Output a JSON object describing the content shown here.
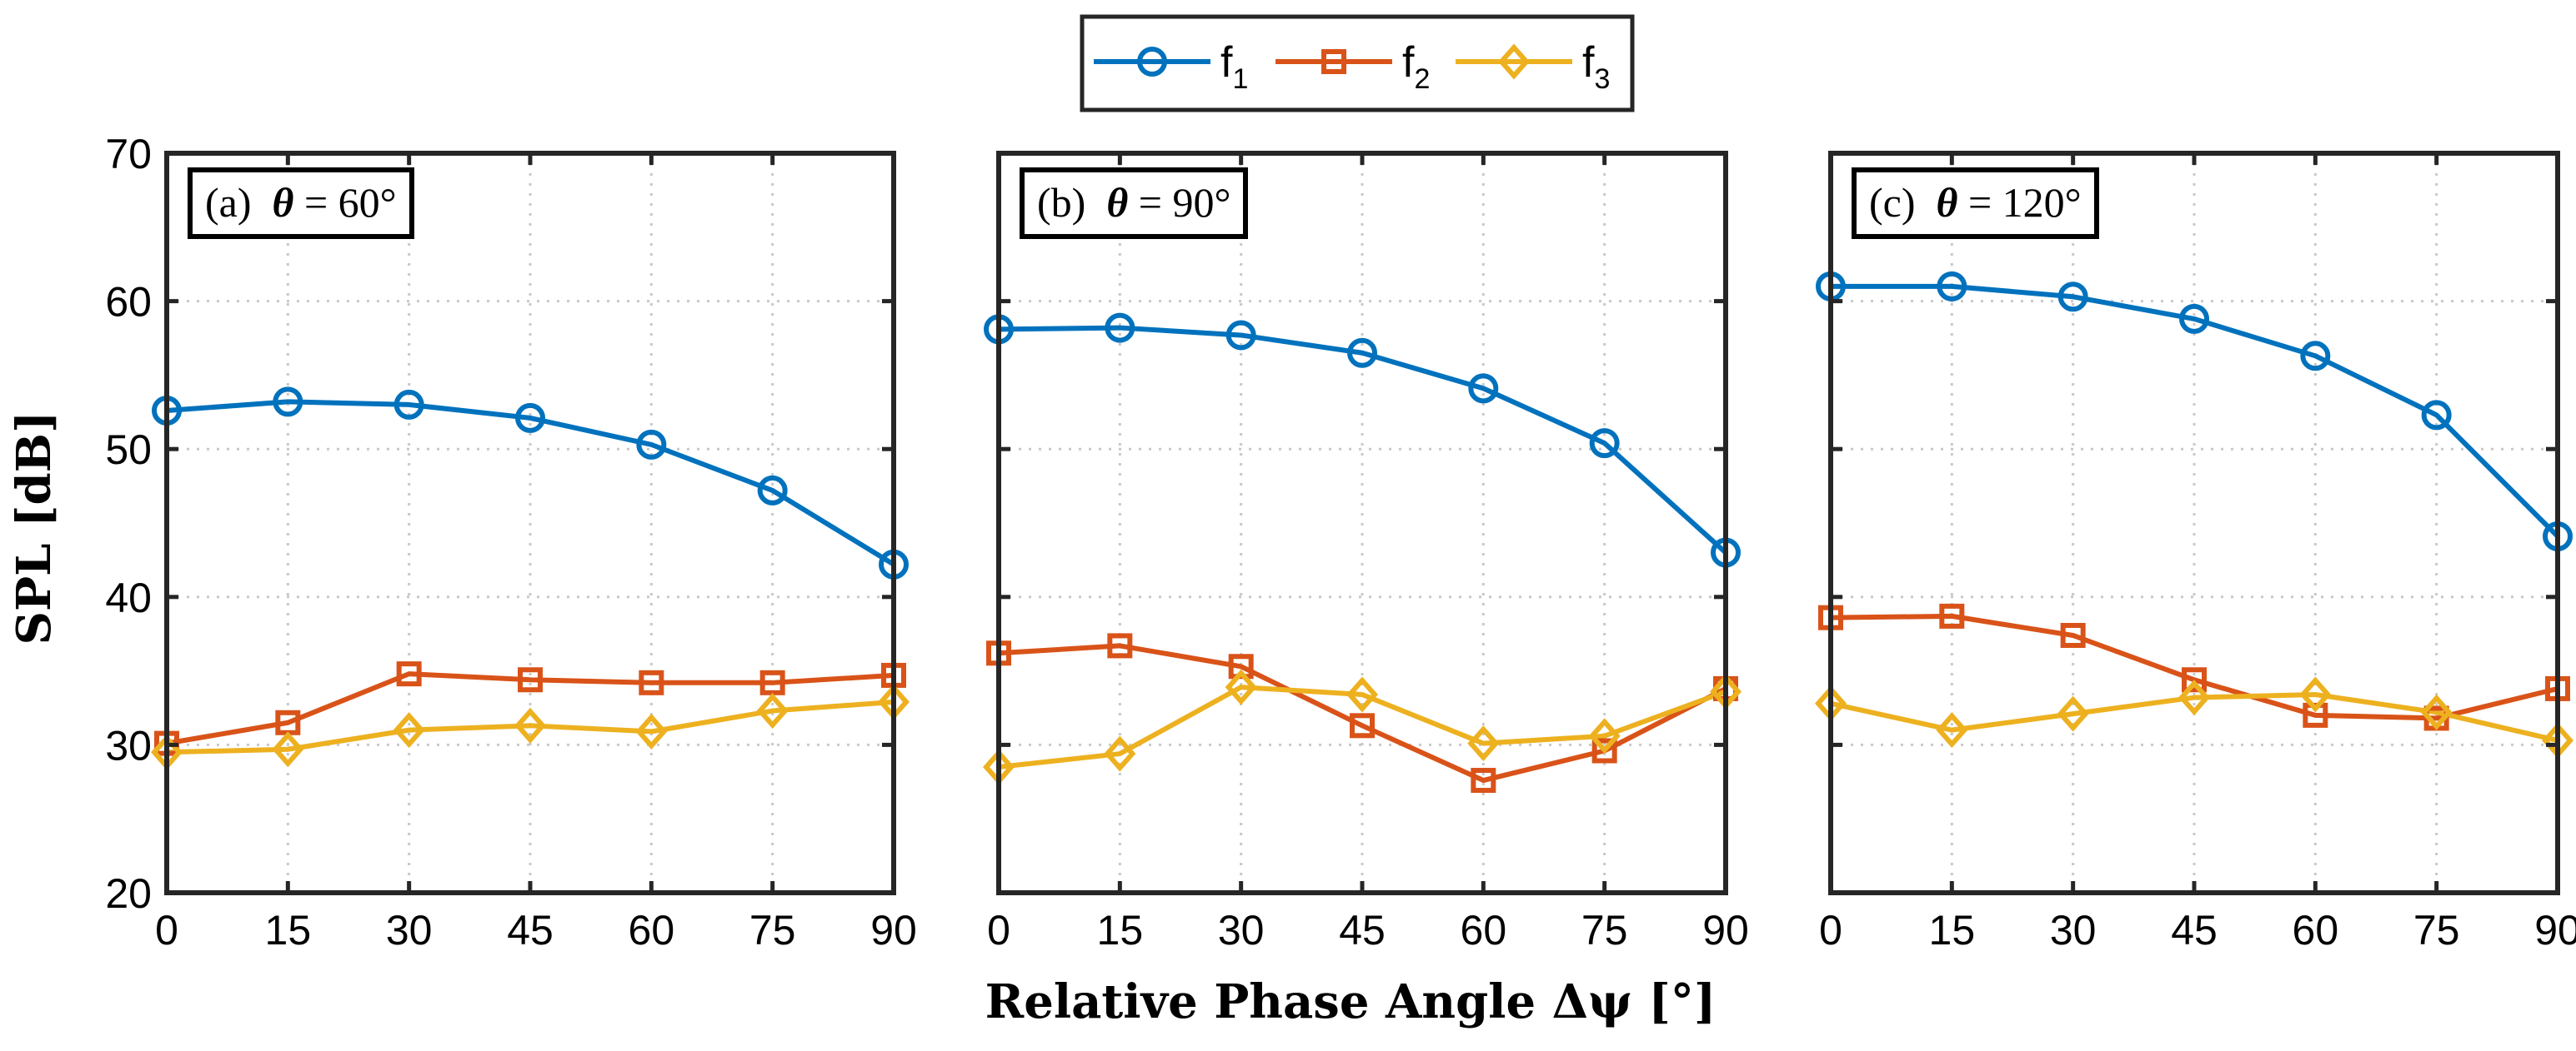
{
  "chart_data": {
    "type": "line",
    "xlabel": "Relative Phase Angle Δψ [°]",
    "ylabel": "SPL [dB]",
    "xlim": [
      0,
      90
    ],
    "ylim": [
      20,
      70
    ],
    "x_ticks": [
      0,
      15,
      30,
      45,
      60,
      75,
      90
    ],
    "y_ticks": [
      20,
      30,
      40,
      50,
      60,
      70
    ],
    "grid": true,
    "legend": {
      "placement": "top-center",
      "entries": [
        {
          "name": "f",
          "sub": "1",
          "color": "#0072BD",
          "marker": "circle"
        },
        {
          "name": "f",
          "sub": "2",
          "color": "#D95319",
          "marker": "square"
        },
        {
          "name": "f",
          "sub": "3",
          "color": "#EDB120",
          "marker": "diamond"
        }
      ]
    },
    "panels": [
      {
        "label_prefix": "(a)",
        "label_symbol": "θ",
        "label_value": "= 60°",
        "show_y_tick_labels": true,
        "x": [
          0,
          15,
          30,
          45,
          60,
          75,
          90
        ],
        "series": [
          {
            "name": "f1",
            "values": [
              52.6,
              53.2,
              53.0,
              52.1,
              50.3,
              47.2,
              42.2
            ]
          },
          {
            "name": "f2",
            "values": [
              30.1,
              31.5,
              34.8,
              34.4,
              34.2,
              34.2,
              34.7
            ]
          },
          {
            "name": "f3",
            "values": [
              29.5,
              29.7,
              31.0,
              31.3,
              30.9,
              32.3,
              32.9
            ]
          }
        ]
      },
      {
        "label_prefix": "(b)",
        "label_symbol": "θ",
        "label_value": "= 90°",
        "show_y_tick_labels": false,
        "x": [
          0,
          15,
          30,
          45,
          60,
          75,
          90
        ],
        "series": [
          {
            "name": "f1",
            "values": [
              58.1,
              58.2,
              57.7,
              56.5,
              54.1,
              50.4,
              43.0
            ]
          },
          {
            "name": "f2",
            "values": [
              36.2,
              36.7,
              35.3,
              31.3,
              27.6,
              29.6,
              33.8
            ]
          },
          {
            "name": "f3",
            "values": [
              28.5,
              29.4,
              33.9,
              33.4,
              30.1,
              30.6,
              33.6
            ]
          }
        ]
      },
      {
        "label_prefix": "(c)",
        "label_symbol": "θ",
        "label_value": "= 120°",
        "show_y_tick_labels": false,
        "x": [
          0,
          15,
          30,
          45,
          60,
          75,
          90
        ],
        "series": [
          {
            "name": "f1",
            "values": [
              61.0,
              61.0,
              60.3,
              58.8,
              56.3,
              52.3,
              44.1
            ]
          },
          {
            "name": "f2",
            "values": [
              38.6,
              38.7,
              37.4,
              34.4,
              32.0,
              31.8,
              33.8
            ]
          },
          {
            "name": "f3",
            "values": [
              32.8,
              31.0,
              32.1,
              33.2,
              33.4,
              32.2,
              30.3
            ]
          }
        ]
      }
    ]
  }
}
